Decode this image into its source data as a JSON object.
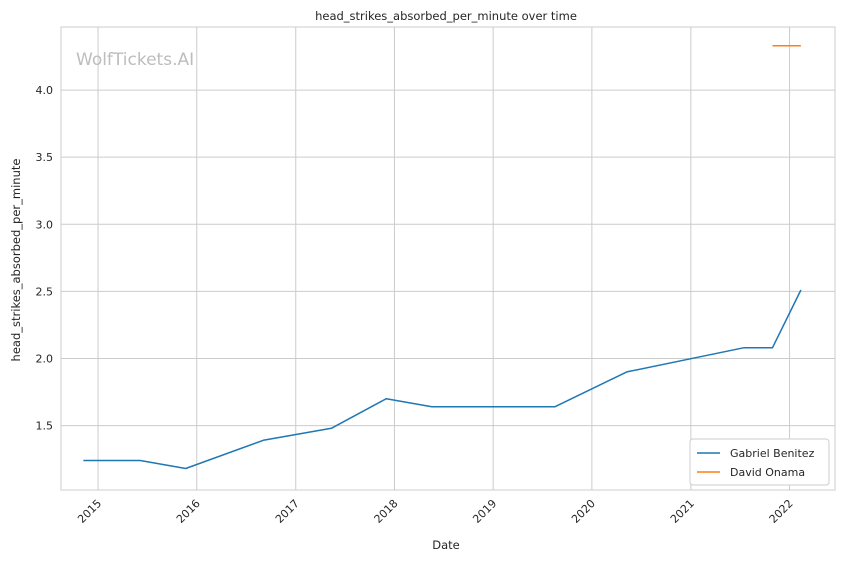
{
  "chart_data": {
    "type": "line",
    "title": "head_strikes_absorbed_per_minute over time",
    "xlabel": "Date",
    "ylabel": "head_strikes_absorbed_per_minute",
    "watermark": "WolfTickets.AI",
    "x_ticks": [
      "2015",
      "2016",
      "2017",
      "2018",
      "2019",
      "2020",
      "2021",
      "2022"
    ],
    "y_ticks": [
      "1.5",
      "2.0",
      "2.5",
      "3.0",
      "3.5",
      "4.0"
    ],
    "xlim": [
      "2014-08-17",
      "2022-06-18"
    ],
    "ylim": [
      1.02,
      4.47
    ],
    "grid": true,
    "legend_position": "lower-right",
    "series": [
      {
        "name": "Gabriel Benitez",
        "color": "#1f77b4",
        "points": [
          {
            "x": "2014-11-08",
            "y": 1.24
          },
          {
            "x": "2015-06-06",
            "y": 1.24
          },
          {
            "x": "2015-11-21",
            "y": 1.18
          },
          {
            "x": "2016-09-03",
            "y": 1.39
          },
          {
            "x": "2017-05-13",
            "y": 1.48
          },
          {
            "x": "2017-12-02",
            "y": 1.7
          },
          {
            "x": "2018-05-19",
            "y": 1.64
          },
          {
            "x": "2019-08-17",
            "y": 1.64
          },
          {
            "x": "2020-05-09",
            "y": 1.9
          },
          {
            "x": "2021-07-17",
            "y": 2.08
          },
          {
            "x": "2021-10-30",
            "y": 2.08
          },
          {
            "x": "2022-02-12",
            "y": 2.51
          }
        ]
      },
      {
        "name": "David Onama",
        "color": "#ff7f0e",
        "points": [
          {
            "x": "2021-10-30",
            "y": 4.33
          },
          {
            "x": "2022-02-12",
            "y": 4.33
          }
        ]
      }
    ]
  }
}
